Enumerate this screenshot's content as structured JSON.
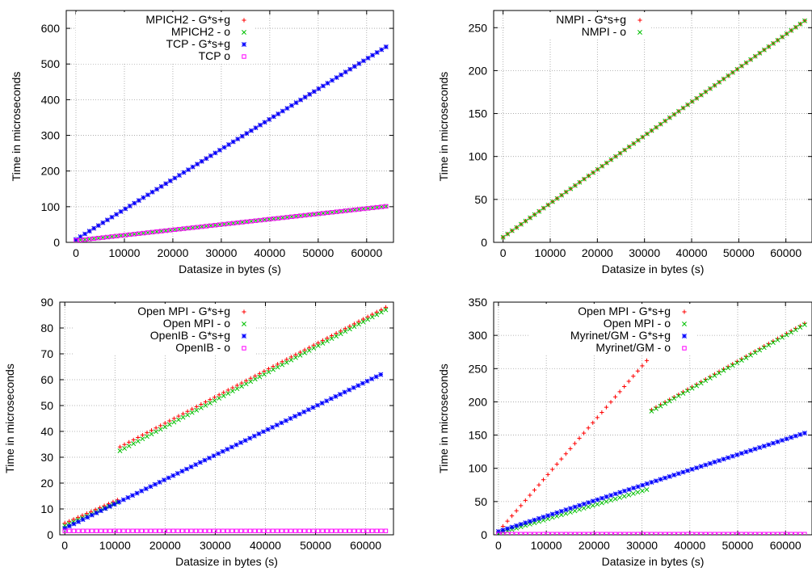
{
  "chart_data": [
    {
      "type": "scatter",
      "xlabel": "Datasize in bytes (s)",
      "ylabel": "Time in microseconds",
      "xlim": [
        -2000,
        65536
      ],
      "ylim": [
        0,
        650
      ],
      "xticks": [
        0,
        10000,
        20000,
        30000,
        40000,
        50000,
        60000
      ],
      "yticks": [
        0,
        100,
        200,
        300,
        400,
        500,
        600
      ],
      "grid": true,
      "legend_position": "top-left",
      "series": [
        {
          "name": "MPICH2 - G*s+g",
          "color": "#ff0000",
          "marker": "plus",
          "segments": [
            [
              0,
              8,
              64000,
              548
            ]
          ]
        },
        {
          "name": "MPICH2 - o",
          "color": "#00c000",
          "marker": "cross",
          "segments": [
            [
              0,
              5,
              64000,
              101
            ]
          ]
        },
        {
          "name": "TCP - G*s+g",
          "color": "#0000ff",
          "marker": "star",
          "segments": [
            [
              0,
              8,
              64000,
              548
            ]
          ]
        },
        {
          "name": "TCP o",
          "color": "#ff00ff",
          "marker": "square",
          "segments": [
            [
              0,
              5,
              64000,
              101
            ]
          ]
        }
      ]
    },
    {
      "type": "scatter",
      "xlabel": "Datasize in bytes (s)",
      "ylabel": "Time in microseconds",
      "xlim": [
        -2000,
        65536
      ],
      "ylim": [
        0,
        270
      ],
      "xticks": [
        0,
        10000,
        20000,
        30000,
        40000,
        50000,
        60000
      ],
      "yticks": [
        0,
        50,
        100,
        150,
        200,
        250
      ],
      "grid": true,
      "legend_position": "top-left",
      "series": [
        {
          "name": "NMPI - G*s+g",
          "color": "#ff0000",
          "marker": "plus",
          "segments": [
            [
              0,
              6,
              64000,
              258
            ]
          ]
        },
        {
          "name": "NMPI - o",
          "color": "#00c000",
          "marker": "cross",
          "segments": [
            [
              0,
              6,
              64000,
              258
            ]
          ]
        }
      ]
    },
    {
      "type": "scatter",
      "xlabel": "Datasize in bytes (s)",
      "ylabel": "Time in microseconds",
      "xlim": [
        -1000,
        65536
      ],
      "ylim": [
        0,
        90
      ],
      "xticks": [
        0,
        10000,
        20000,
        30000,
        40000,
        50000,
        60000
      ],
      "yticks": [
        0,
        10,
        20,
        30,
        40,
        50,
        60,
        70,
        80,
        90
      ],
      "grid": true,
      "legend_position": "top-left",
      "series": [
        {
          "name": "Open MPI - G*s+g",
          "color": "#ff0000",
          "marker": "plus",
          "segments": [
            [
              0,
              4.5,
              10500,
              13.5
            ],
            [
              11000,
              34,
              64000,
              88
            ]
          ]
        },
        {
          "name": "Open MPI - o",
          "color": "#00c000",
          "marker": "cross",
          "segments": [
            [
              0,
              3.5,
              10500,
              12.5
            ],
            [
              11000,
              32.5,
              64000,
              87
            ]
          ]
        },
        {
          "name": "OpenIB - G*s+g",
          "color": "#0000ff",
          "marker": "star",
          "segments": [
            [
              0,
              2.5,
              63000,
              62
            ]
          ]
        },
        {
          "name": "OpenIB - o",
          "color": "#ff00ff",
          "marker": "square",
          "segments": [
            [
              0,
              1.5,
              64000,
              1.5
            ]
          ]
        }
      ]
    },
    {
      "type": "scatter",
      "xlabel": "Datasize in bytes (s)",
      "ylabel": "Time in microseconds",
      "xlim": [
        -1000,
        65536
      ],
      "ylim": [
        0,
        350
      ],
      "xticks": [
        0,
        10000,
        20000,
        30000,
        40000,
        50000,
        60000
      ],
      "yticks": [
        0,
        50,
        100,
        150,
        200,
        250,
        300,
        350
      ],
      "grid": true,
      "legend_position": "top-left",
      "series": [
        {
          "name": "Open MPI - G*s+g",
          "color": "#ff0000",
          "marker": "plus",
          "segments": [
            [
              0,
              5,
              31000,
              262
            ],
            [
              32000,
              188,
              64000,
              318
            ]
          ]
        },
        {
          "name": "Open MPI - o",
          "color": "#00c000",
          "marker": "cross",
          "segments": [
            [
              0,
              2,
              31000,
              68
            ],
            [
              32000,
              186,
              64000,
              316
            ]
          ]
        },
        {
          "name": "Myrinet/GM - G*s+g",
          "color": "#0000ff",
          "marker": "star",
          "segments": [
            [
              0,
              5,
              64000,
              153
            ]
          ]
        },
        {
          "name": "Myrinet/GM - o",
          "color": "#ff00ff",
          "marker": "square",
          "segments": [
            [
              0,
              1,
              64000,
              1
            ]
          ]
        }
      ]
    }
  ]
}
